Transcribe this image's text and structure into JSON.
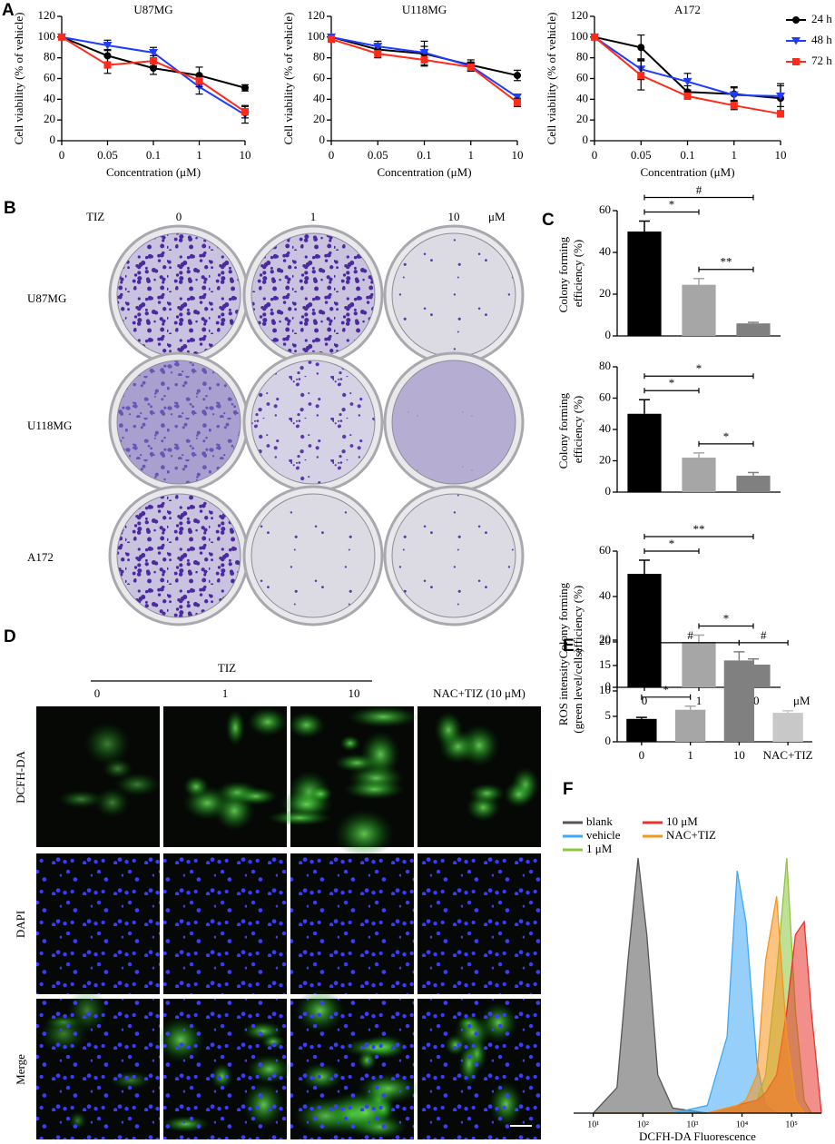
{
  "panel_labels": [
    "A",
    "B",
    "C",
    "D",
    "E",
    "F"
  ],
  "colony_assay": {
    "drug": "TIZ",
    "doses": [
      "0",
      "1",
      "10"
    ],
    "unit": "μM",
    "cell_lines": [
      "U87MG",
      "U118MG",
      "A172"
    ]
  },
  "ros_imaging": {
    "drug": "TIZ",
    "doses": [
      "0",
      "1",
      "10"
    ],
    "control": "NAC+TIZ (10 μM)",
    "stains": [
      "DCFH-DA",
      "DAPI",
      "Merge"
    ]
  },
  "chart_data": [
    {
      "type": "line",
      "title": "U87MG",
      "ylabel": "Cell viability (% of vehicle)",
      "xlabel": "Concentration (μM)",
      "categories": [
        "0",
        "0.05",
        "0.1",
        "1",
        "10"
      ],
      "ylim": [
        0,
        120
      ],
      "yticks": [
        0,
        20,
        40,
        60,
        80,
        100,
        120
      ],
      "series": [
        {
          "color": "#000000",
          "marker": "circle",
          "values": [
            100,
            82,
            70,
            63,
            51
          ],
          "errors": [
            0,
            6,
            6,
            8,
            3
          ]
        },
        {
          "color": "#1f3cff",
          "marker": "triangle",
          "values": [
            100,
            92,
            85,
            52,
            25
          ],
          "errors": [
            0,
            5,
            5,
            7,
            8
          ]
        },
        {
          "color": "#ff2a1a",
          "marker": "square",
          "values": [
            100,
            73,
            77,
            58,
            28
          ],
          "errors": [
            0,
            8,
            5,
            6,
            6
          ]
        }
      ]
    },
    {
      "type": "line",
      "title": "U118MG",
      "ylabel": "Cell viability (% of vehicle)",
      "xlabel": "Concentration (μM)",
      "categories": [
        "0",
        "0.05",
        "0.1",
        "1",
        "10"
      ],
      "ylim": [
        0,
        120
      ],
      "yticks": [
        0,
        20,
        40,
        60,
        80,
        100,
        120
      ],
      "series": [
        {
          "color": "#000000",
          "marker": "circle",
          "values": [
            100,
            88,
            84,
            73,
            63
          ],
          "errors": [
            0,
            5,
            12,
            5,
            5
          ]
        },
        {
          "color": "#1f3cff",
          "marker": "triangle",
          "values": [
            100,
            91,
            85,
            72,
            42
          ],
          "errors": [
            0,
            5,
            6,
            4,
            3
          ]
        },
        {
          "color": "#ff2a1a",
          "marker": "square",
          "values": [
            98,
            84,
            78,
            71,
            37
          ],
          "errors": [
            0,
            4,
            5,
            4,
            4
          ]
        }
      ]
    },
    {
      "type": "line",
      "title": "A172",
      "ylabel": "Cell viability (% of vehicle)",
      "xlabel": "Concentration (μM)",
      "categories": [
        "0",
        "0.05",
        "0.1",
        "1",
        "10"
      ],
      "ylim": [
        0,
        120
      ],
      "yticks": [
        0,
        20,
        40,
        60,
        80,
        100,
        120
      ],
      "legend": "right",
      "series": [
        {
          "name": "24 h",
          "color": "#000000",
          "marker": "circle",
          "values": [
            100,
            90,
            47,
            45,
            41
          ],
          "errors": [
            0,
            12,
            6,
            6,
            14
          ]
        },
        {
          "name": "48 h",
          "color": "#1f3cff",
          "marker": "triangle",
          "values": [
            100,
            69,
            57,
            44,
            43
          ],
          "errors": [
            0,
            10,
            8,
            8,
            10
          ]
        },
        {
          "name": "72 h",
          "color": "#ff2a1a",
          "marker": "square",
          "values": [
            100,
            63,
            43,
            34,
            26
          ],
          "errors": [
            0,
            14,
            3,
            4,
            3
          ]
        }
      ]
    },
    {
      "type": "bar",
      "ylabel": "Colony forming efficiency (%)",
      "values": [
        50,
        24.5,
        6
      ],
      "errors": [
        5,
        3,
        0.5
      ],
      "colors": [
        "#000000",
        "#a6a6a6",
        "#808080"
      ],
      "ylim": [
        0,
        60
      ],
      "yticks": [
        0,
        20,
        40,
        60
      ],
      "brackets": [
        {
          "from": 0,
          "to": 1,
          "label": "*"
        },
        {
          "from": 1,
          "to": 2,
          "label": "**"
        },
        {
          "from": 0,
          "to": 2,
          "label": "#"
        }
      ]
    },
    {
      "type": "bar",
      "ylabel": "Colony forming efficiency (%)",
      "values": [
        50,
        22,
        10.5
      ],
      "errors": [
        9,
        3,
        2
      ],
      "colors": [
        "#000000",
        "#a6a6a6",
        "#808080"
      ],
      "ylim": [
        0,
        80
      ],
      "yticks": [
        0,
        20,
        40,
        60,
        80
      ],
      "brackets": [
        {
          "from": 0,
          "to": 1,
          "label": "*"
        },
        {
          "from": 1,
          "to": 2,
          "label": "*"
        },
        {
          "from": 0,
          "to": 2,
          "label": "*"
        }
      ]
    },
    {
      "type": "bar",
      "ylabel": "Colony forming efficiency (%)",
      "categories": [
        "0",
        "1",
        "10"
      ],
      "unit": "μM",
      "values": [
        50,
        20,
        10
      ],
      "errors": [
        6,
        3,
        2.5
      ],
      "colors": [
        "#000000",
        "#a6a6a6",
        "#808080"
      ],
      "ylim": [
        0,
        60
      ],
      "yticks": [
        0,
        20,
        40,
        60
      ],
      "brackets": [
        {
          "from": 0,
          "to": 1,
          "label": "*"
        },
        {
          "from": 1,
          "to": 2,
          "label": "*"
        },
        {
          "from": 0,
          "to": 2,
          "label": "**"
        }
      ]
    },
    {
      "type": "bar",
      "ylabel": "ROS intensity (green level/cells)",
      "categories": [
        "0",
        "1",
        "10",
        "NAC+TIZ"
      ],
      "values": [
        4.5,
        6.3,
        16,
        5.7
      ],
      "errors": [
        0.3,
        0.7,
        1.7,
        0.4
      ],
      "colors": [
        "#000000",
        "#a6a6a6",
        "#808080",
        "#c8c8c8"
      ],
      "ylim": [
        0,
        20
      ],
      "yticks": [
        0,
        5,
        10,
        15,
        20
      ],
      "brackets": [
        {
          "from": 0,
          "to": 1,
          "label": "*"
        },
        {
          "from": 2,
          "to": 3,
          "label": "#"
        },
        {
          "from": 0,
          "to": 2,
          "label": "#"
        }
      ]
    },
    {
      "type": "area",
      "xlabel": "DCFH-DA Fluorescence",
      "xscale": "log",
      "xlim": [
        4,
        400000
      ],
      "xticks": [
        {
          "value": 10,
          "label": "10¹"
        },
        {
          "value": 100,
          "label": "10²"
        },
        {
          "value": 1000,
          "label": "10³"
        },
        {
          "value": 10000,
          "label": "10⁴"
        },
        {
          "value": 100000,
          "label": "10⁵"
        }
      ],
      "x": [
        10,
        30,
        50,
        80,
        120,
        200,
        400,
        2000,
        5000,
        8000,
        12000,
        20000,
        30000,
        50000,
        80000,
        120000,
        180000,
        250000,
        400000
      ],
      "series": [
        {
          "name": "blank",
          "color": "#555555",
          "values": [
            0,
            10,
            60,
            100,
            70,
            15,
            2,
            0,
            0,
            0,
            0,
            0,
            0,
            0,
            0,
            0,
            0,
            0,
            0
          ]
        },
        {
          "name": "vehicle",
          "color": "#3fa9f5",
          "values": [
            0,
            0,
            0,
            0,
            0,
            0,
            0,
            3,
            30,
            95,
            75,
            20,
            3,
            0,
            0,
            0,
            0,
            0,
            0
          ]
        },
        {
          "name": "1 μM",
          "color": "#8dc63f",
          "values": [
            0,
            0,
            0,
            0,
            0,
            0,
            0,
            0,
            2,
            3,
            4,
            5,
            15,
            55,
            100,
            40,
            5,
            0,
            0
          ]
        },
        {
          "name": "10 μM",
          "color": "#e8332a",
          "values": [
            0,
            0,
            0,
            0,
            0,
            0,
            0,
            0,
            2,
            3,
            4,
            5,
            8,
            15,
            40,
            70,
            75,
            40,
            0
          ]
        },
        {
          "name": "NAC+TIZ",
          "color": "#f7941d",
          "values": [
            0,
            0,
            0,
            0,
            0,
            0,
            0,
            0,
            2,
            3,
            5,
            15,
            60,
            85,
            30,
            5,
            0,
            0,
            0
          ]
        }
      ]
    }
  ]
}
